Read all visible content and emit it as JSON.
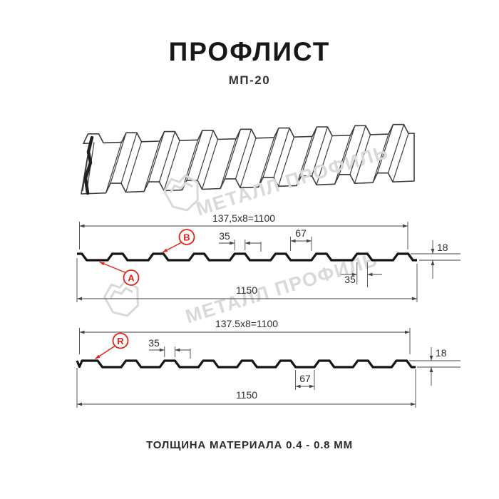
{
  "header": {
    "title": "ПРОФЛИСТ",
    "subtitle": "МП-20"
  },
  "watermark": {
    "text": "МЕТАЛЛ ПРОФИЛЬ"
  },
  "drawing_top": {
    "label_a": "A",
    "label_b": "B",
    "dim_module_total": "137,5x8=1100",
    "dim_crest_width": "35",
    "dim_valley_width": "67",
    "dim_height": "18",
    "dim_crest_width_bottom": "35",
    "dim_overall_width": "1150"
  },
  "drawing_bottom": {
    "label_r": "R",
    "dim_module_total": "137.5x8=1100",
    "dim_crest_width": "35",
    "dim_height": "18",
    "dim_valley_width": "67",
    "dim_overall_width": "1150"
  },
  "footer": {
    "thickness_note": "ТОЛЩИНА МАТЕРИАЛА 0.4 - 0.8 ММ"
  },
  "colors": {
    "accent_red": "#e42313",
    "drawing_line": "#454545",
    "profile_line": "#151515",
    "watermark_gray": "#d9d9d9"
  }
}
